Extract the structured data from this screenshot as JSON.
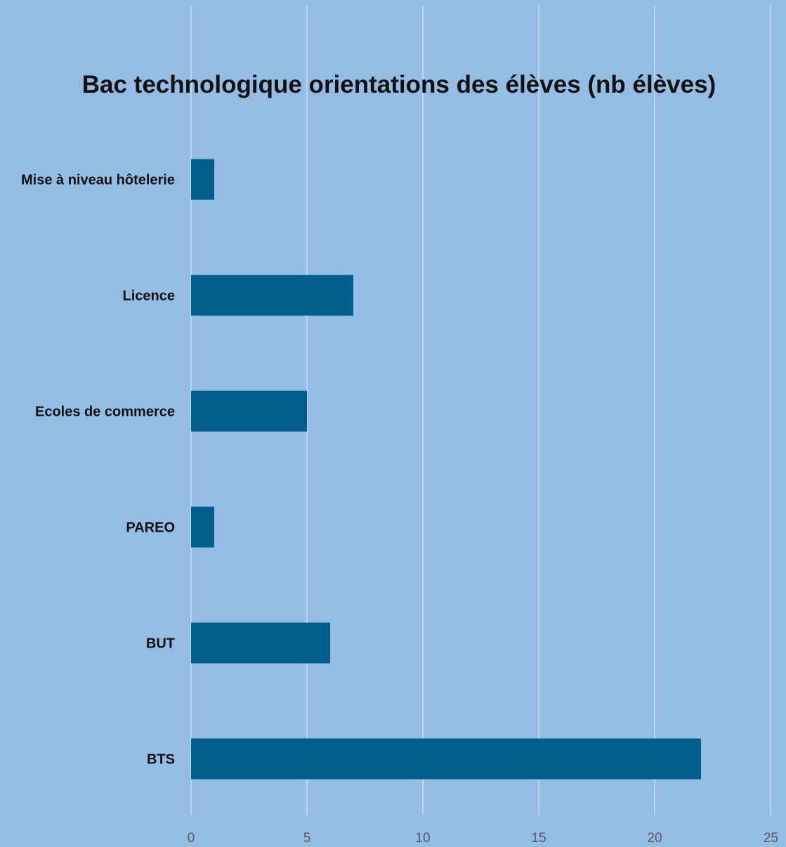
{
  "colors": {
    "background": "#95bce5",
    "bar": "#005e8c",
    "grid": "#ffffff",
    "title_text": "#111111",
    "tick_text": "#55595e"
  },
  "chart_data": {
    "type": "bar",
    "orientation": "horizontal",
    "title": "Bac technologique orientations des élèves (nb élèves)",
    "xlabel": "",
    "ylabel": "",
    "categories": [
      "Mise à niveau hôtelerie",
      "Licence",
      "Ecoles de commerce",
      "PAREO",
      "BUT",
      "BTS"
    ],
    "values": [
      1,
      7,
      5,
      1,
      6,
      22
    ],
    "xlim": [
      0,
      25
    ],
    "xticks": [
      "0",
      "5",
      "10",
      "15",
      "20",
      "25"
    ],
    "grid": true,
    "legend": "none"
  }
}
